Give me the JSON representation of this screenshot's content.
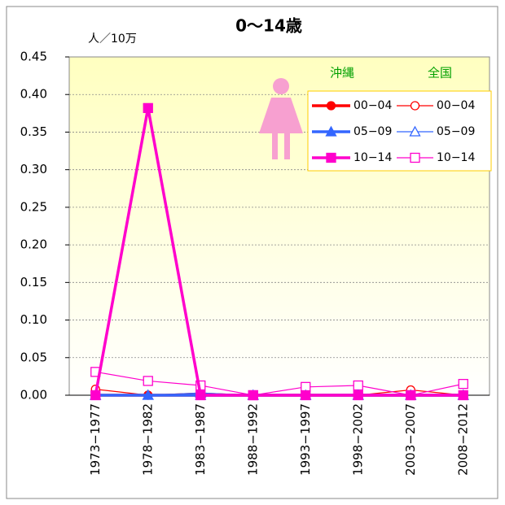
{
  "chart_data": {
    "type": "line",
    "title": "0〜14歳",
    "y_unit_label": "人／10万",
    "categories": [
      "1973−1977",
      "1978−1982",
      "1983−1987",
      "1988−1992",
      "1993−1997",
      "1998−2002",
      "2003−2007",
      "2008−2012"
    ],
    "ylim": [
      0,
      0.45
    ],
    "yticks": [
      {
        "value": 0,
        "label": "0.00"
      },
      {
        "value": 0.05,
        "label": "0.05"
      },
      {
        "value": 0.1,
        "label": "0.10"
      },
      {
        "value": 0.15,
        "label": "0.15"
      },
      {
        "value": 0.2,
        "label": "0.20"
      },
      {
        "value": 0.25,
        "label": "0.25"
      },
      {
        "value": 0.3,
        "label": "0.30"
      },
      {
        "value": 0.35,
        "label": "0.35"
      },
      {
        "value": 0.4,
        "label": "0.40"
      },
      {
        "value": 0.45,
        "label": "0.45"
      }
    ],
    "grid": true,
    "legend_groups": [
      "沖縄",
      "全国"
    ],
    "series": [
      {
        "name": "00−04",
        "color": "#ff0000",
        "marker": "circle",
        "filled": true,
        "values": [
          0,
          0,
          0,
          0,
          0,
          0,
          0,
          0
        ]
      },
      {
        "name": "05−09",
        "color": "#3366ff",
        "marker": "triangle",
        "filled": true,
        "values": [
          0,
          0,
          0,
          0,
          0,
          0,
          0,
          0
        ]
      },
      {
        "name": "10−14",
        "color": "#ff00cc",
        "marker": "square",
        "filled": true,
        "values": [
          0,
          0.382,
          0,
          0,
          0,
          0,
          0,
          0
        ]
      },
      {
        "name": "00−04",
        "color": "#ff0000",
        "marker": "circle",
        "filled": false,
        "values": [
          0.008,
          0,
          0.003,
          0,
          0,
          0,
          0.007,
          0
        ]
      },
      {
        "name": "05−09",
        "color": "#3366ff",
        "marker": "triangle",
        "filled": false,
        "values": [
          0,
          0,
          0.003,
          0,
          0,
          0,
          0,
          0
        ]
      },
      {
        "name": "10−14",
        "color": "#ff00cc",
        "marker": "square",
        "filled": false,
        "values": [
          0.031,
          0.019,
          0.013,
          0,
          0.011,
          0.013,
          0,
          0.015
        ]
      }
    ]
  }
}
